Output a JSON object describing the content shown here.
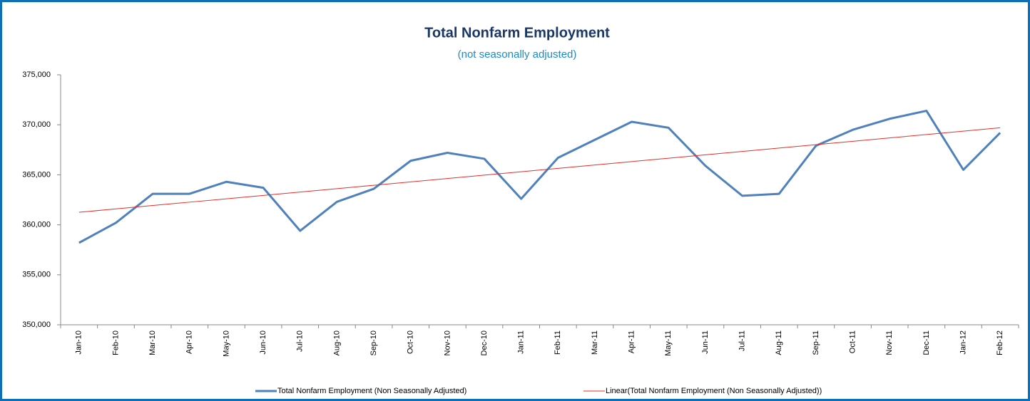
{
  "chart_data": {
    "type": "line",
    "title": "Total Nonfarm Employment",
    "subtitle": "(not seasonally adjusted)",
    "categories": [
      "Jan-10",
      "Feb-10",
      "Mar-10",
      "Apr-10",
      "May-10",
      "Jun-10",
      "Jul-10",
      "Aug-10",
      "Sep-10",
      "Oct-10",
      "Nov-10",
      "Dec-10",
      "Jan-11",
      "Feb-11",
      "Mar-11",
      "Apr-11",
      "May-11",
      "Jun-11",
      "Jul-11",
      "Aug-11",
      "Sep-11",
      "Oct-11",
      "Nov-11",
      "Dec-11",
      "Jan-12",
      "Feb-12"
    ],
    "series": [
      {
        "name": "Total Nonfarm Employment (Non Seasonally Adjusted)",
        "color": "#4f81bd",
        "values": [
          358200,
          360200,
          363100,
          363100,
          364300,
          363700,
          359400,
          362300,
          363600,
          366400,
          367200,
          366600,
          362600,
          366700,
          368500,
          370300,
          369700,
          365900,
          362900,
          363100,
          367900,
          369500,
          370600,
          371400,
          365500,
          369200
        ]
      },
      {
        "name": "Linear(Total Nonfarm Employment (Non Seasonally Adjusted))",
        "color": "#e0302b",
        "values": [
          361250,
          361588,
          361926,
          362264,
          362602,
          362940,
          363278,
          363616,
          363954,
          364292,
          364630,
          364968,
          365306,
          365644,
          365982,
          366320,
          366658,
          366996,
          367334,
          367672,
          368010,
          368348,
          368686,
          369024,
          369362,
          369700
        ]
      }
    ],
    "ylim": [
      350000,
      375000
    ],
    "yticks": [
      {
        "value": 350000,
        "label": "350,000"
      },
      {
        "value": 355000,
        "label": "355,000"
      },
      {
        "value": 360000,
        "label": "360,000"
      },
      {
        "value": 365000,
        "label": "365,000"
      },
      {
        "value": 370000,
        "label": "370,000"
      },
      {
        "value": 375000,
        "label": "375,000"
      }
    ],
    "grid": false,
    "legend": "bottom"
  }
}
